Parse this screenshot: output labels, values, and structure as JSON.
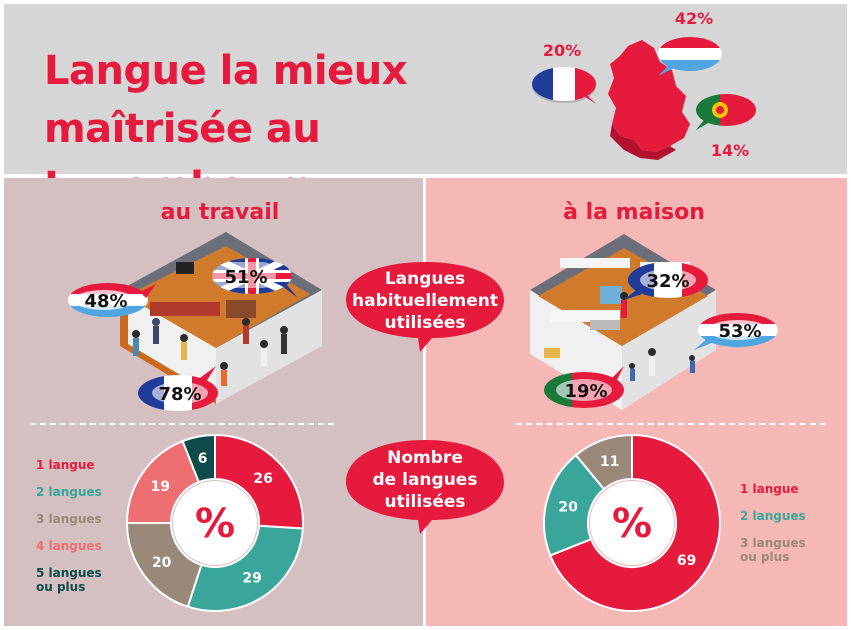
{
  "title_line1": "Langue la mieux",
  "title_line2": "maîtrisée au Luxembourg",
  "header_stats": [
    {
      "language": "French",
      "percent": "20%"
    },
    {
      "language": "Luxembourgish",
      "percent": "42%"
    },
    {
      "language": "Portuguese",
      "percent": "14%"
    }
  ],
  "work_title": "au travail",
  "home_title": "à la maison",
  "bubble_top": [
    "Langues",
    "habituellement",
    "utilisées"
  ],
  "bubble_bottom": [
    "Nombre",
    "de langues",
    "utilisées"
  ],
  "work_badges": [
    {
      "language": "English",
      "percent": "51%"
    },
    {
      "language": "Luxembourgish",
      "percent": "48%"
    },
    {
      "language": "French",
      "percent": "78%"
    }
  ],
  "home_badges": [
    {
      "language": "French",
      "percent": "32%"
    },
    {
      "language": "Luxembourgish",
      "percent": "53%"
    },
    {
      "language": "Portuguese",
      "percent": "19%"
    }
  ],
  "work_legend": [
    "1 langue",
    "2 langues",
    "3 langues",
    "4 langues",
    "5 langues",
    "ou plus"
  ],
  "home_legend": [
    "1 langue",
    "2 langues",
    "3 langues",
    "ou plus"
  ],
  "colors": {
    "red": "#e61a3c",
    "teal": "#3aa69a",
    "taupe": "#9a8878",
    "salmon": "#ee6f72",
    "dark_teal": "#0e4a4a",
    "header_bg": "#d6d6d6",
    "left_bg": "#d5c0c1",
    "right_bg": "#f5b8b4"
  },
  "chart_data": [
    {
      "type": "pie",
      "variant": "donut",
      "center_label": "%",
      "categories": [
        "1 langue",
        "2 langues",
        "3 langues",
        "4 langues",
        "5 langues ou plus"
      ],
      "values": [
        26,
        29,
        20,
        19,
        6
      ],
      "colors": [
        "#e61a3c",
        "#3aa69a",
        "#9a8878",
        "#ee6f72",
        "#0e4a4a"
      ]
    },
    {
      "type": "pie",
      "variant": "donut",
      "center_label": "%",
      "categories": [
        "1 langue",
        "2 langues",
        "3 langues ou plus"
      ],
      "values": [
        69,
        20,
        11
      ],
      "colors": [
        "#e61a3c",
        "#3aa69a",
        "#9a8878"
      ]
    }
  ]
}
